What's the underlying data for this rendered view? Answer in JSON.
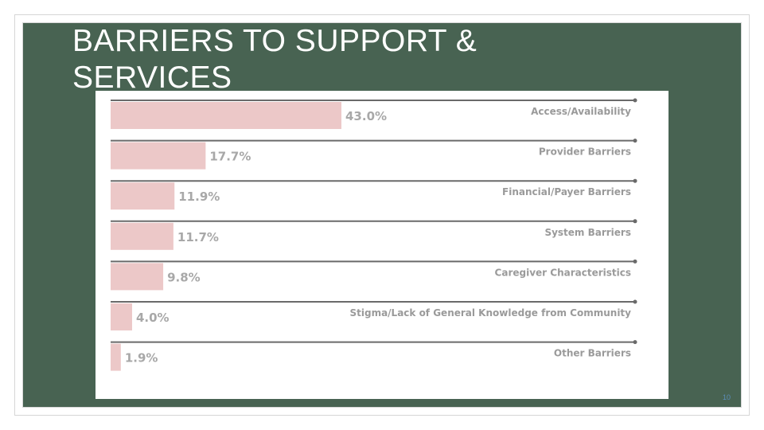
{
  "slide": {
    "title": "BARRIERS TO SUPPORT & SERVICES",
    "page_number": "10"
  },
  "colors": {
    "background": "#486352",
    "bar": "#ecc8c8",
    "rule": "#6a6a6a",
    "value_text": "#a8a8a8",
    "category_text": "#9a9a9a"
  },
  "chart_data": {
    "type": "bar",
    "orientation": "horizontal",
    "title": "",
    "xlabel": "",
    "ylabel": "",
    "xlim": [
      0,
      100
    ],
    "categories": [
      "Access/Availability",
      "Provider Barriers",
      "Financial/Payer Barriers",
      "System Barriers",
      "Caregiver Characteristics",
      "Stigma/Lack of General Knowledge from Community",
      "Other Barriers"
    ],
    "values": [
      43.0,
      17.7,
      11.9,
      11.7,
      9.8,
      4.0,
      1.9
    ],
    "value_labels": [
      "43.0%",
      "17.7%",
      "11.9%",
      "11.7%",
      "9.8%",
      "4.0%",
      "1.9%"
    ]
  }
}
